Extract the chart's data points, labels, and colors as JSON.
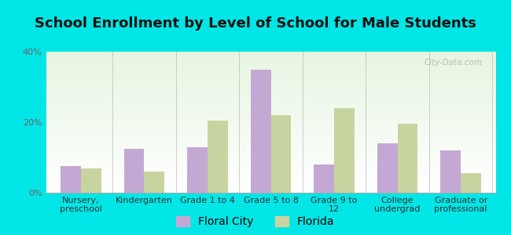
{
  "title": "School Enrollment by Level of School for Male Students",
  "categories": [
    "Nursery,\npreschool",
    "Kindergarten",
    "Grade 1 to 4",
    "Grade 5 to 8",
    "Grade 9 to\n12",
    "College\nundergrad",
    "Graduate or\nprofessional"
  ],
  "floral_city": [
    7.5,
    12.5,
    13.0,
    35.0,
    8.0,
    14.0,
    12.0
  ],
  "florida": [
    7.0,
    6.0,
    20.5,
    22.0,
    24.0,
    19.5,
    5.5
  ],
  "floral_city_color": "#c4a8d4",
  "florida_color": "#c8d4a0",
  "background_color": "#00e5e5",
  "ylim": [
    0,
    40
  ],
  "yticks": [
    0,
    20,
    40
  ],
  "ytick_labels": [
    "0%",
    "20%",
    "40%"
  ],
  "title_fontsize": 13,
  "tick_fontsize": 8,
  "legend_fontsize": 10,
  "bar_width": 0.32,
  "watermark": "City-Data.com"
}
